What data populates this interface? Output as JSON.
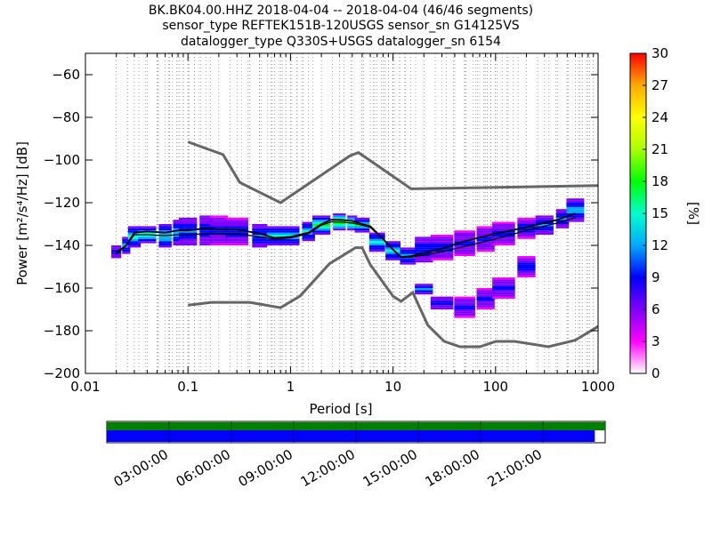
{
  "chart_data": [
    {
      "type": "heatmap",
      "subtype": "probabilistic power spectral density (PPSD)",
      "title_lines": [
        "BK.BK04.00.HHZ   2018-04-04 -- 2018-04-04  (46/46 segments)",
        "sensor_type REFTEK151B-120USGS sensor_sn G14125VS",
        "datalogger_type Q330S+USGS datalogger_sn 6154"
      ],
      "xlabel": "Period [s]",
      "ylabel": "Power [m²/s⁴/Hz] [dB]",
      "xscale": "log",
      "xlim": [
        0.01,
        1000
      ],
      "ylim": [
        -200,
        -50
      ],
      "x_ticks": [
        0.01,
        0.1,
        1,
        10,
        100,
        1000
      ],
      "x_tick_labels": [
        "0.01",
        "0.1",
        "1",
        "10",
        "100",
        "1000"
      ],
      "y_ticks": [
        -200,
        -180,
        -160,
        -140,
        -120,
        -100,
        -80,
        -60
      ],
      "y_tick_labels": [
        "−200",
        "−180",
        "−160",
        "−140",
        "−120",
        "−100",
        "−80",
        "−60"
      ],
      "grid": "dotted vertical lines at period bins, minor grid",
      "colorbar": {
        "label": "[%]",
        "range": [
          0,
          30
        ],
        "ticks": [
          0,
          3,
          6,
          9,
          12,
          15,
          18,
          21,
          24,
          27,
          30
        ],
        "tick_labels": [
          "0",
          "3",
          "6",
          "9",
          "12",
          "15",
          "18",
          "21",
          "24",
          "27",
          "30"
        ],
        "colormap": "pqlx (white-purple-blue-cyan-green-yellow-orange-red)"
      },
      "colors": {
        "noise_models": "#666666",
        "mode_line": "#000000",
        "mean_line": "#000000",
        "colormap_stops": [
          "#ffffff",
          "#ff00ff",
          "#7f00ff",
          "#0000ff",
          "#00aaff",
          "#00ffcc",
          "#00ff00",
          "#aaff00",
          "#ffff00",
          "#ffaa00",
          "#ff0000"
        ]
      },
      "new_high_noise_model": {
        "name": "NHNM",
        "x": [
          0.1,
          0.22,
          0.32,
          0.8,
          3.8,
          4.6,
          6.3,
          15,
          1000
        ],
        "y": [
          -91.5,
          -97.4,
          -110.5,
          -120,
          -98,
          -96.5,
          -101,
          -113.5,
          -112
        ]
      },
      "new_low_noise_model": {
        "name": "NLNM",
        "x": [
          0.1,
          0.17,
          0.4,
          0.8,
          1.24,
          2.4,
          4.3,
          5,
          6,
          10,
          12,
          15.6,
          21.9,
          31.6,
          45,
          70,
          101,
          154,
          328,
          600,
          1000
        ],
        "y": [
          -168,
          -166.7,
          -166.7,
          -169.2,
          -163.7,
          -148.6,
          -141.1,
          -141.1,
          -149,
          -163.8,
          -166.2,
          -162.1,
          -177.5,
          -185,
          -187.5,
          -187.5,
          -185,
          -185,
          -187.5,
          -184.4,
          -178
        ]
      },
      "mode_curve": {
        "x": [
          0.02,
          0.025,
          0.03,
          0.04,
          0.06,
          0.08,
          0.1,
          0.15,
          0.2,
          0.3,
          0.5,
          0.7,
          1,
          1.5,
          2,
          2.5,
          3,
          4,
          5,
          6,
          8,
          10,
          12,
          15,
          20,
          30,
          50,
          100,
          200,
          400,
          600
        ],
        "y": [
          -144,
          -140,
          -134,
          -133.5,
          -134,
          -133,
          -133,
          -132,
          -132.5,
          -132.5,
          -134.5,
          -136.5,
          -136,
          -134,
          -130,
          -128,
          -128,
          -128.5,
          -130,
          -131,
          -137,
          -142,
          -145.5,
          -145,
          -143.5,
          -141.5,
          -138,
          -134.5,
          -131.5,
          -128,
          -125
        ]
      },
      "mean_curve": {
        "x": [
          0.02,
          0.025,
          0.03,
          0.04,
          0.06,
          0.08,
          0.1,
          0.15,
          0.2,
          0.3,
          0.5,
          0.7,
          1,
          1.5,
          2,
          2.5,
          3,
          4,
          5,
          6,
          8,
          10,
          12,
          15,
          20,
          30,
          50,
          100,
          200,
          400,
          600
        ],
        "y": [
          -143,
          -140,
          -135,
          -135,
          -135.5,
          -135,
          -135,
          -134.5,
          -134.5,
          -134.5,
          -136,
          -137,
          -136.5,
          -134.5,
          -130.5,
          -129,
          -129,
          -129.5,
          -130.5,
          -131.5,
          -137,
          -142,
          -145.5,
          -145.5,
          -144.5,
          -143,
          -140.5,
          -137,
          -133,
          -129.5,
          -127
        ]
      },
      "density_bins": [
        {
          "x": 0.02,
          "y_ranges": [
            [
              -146,
              -140
            ]
          ],
          "pct": 8
        },
        {
          "x": 0.025,
          "y_ranges": [
            [
              -144,
              -136
            ]
          ],
          "pct": 10
        },
        {
          "x": 0.03,
          "y_ranges": [
            [
              -141,
              -131
            ]
          ],
          "pct": 12
        },
        {
          "x": 0.04,
          "y_ranges": [
            [
              -139,
              -131
            ]
          ],
          "pct": 14
        },
        {
          "x": 0.06,
          "y_ranges": [
            [
              -141,
              -130
            ]
          ],
          "pct": 12
        },
        {
          "x": 0.08,
          "y_ranges": [
            [
              -140,
              -128
            ]
          ],
          "pct": 10
        },
        {
          "x": 0.1,
          "y_ranges": [
            [
              -140,
              -127
            ]
          ],
          "pct": 9
        },
        {
          "x": 0.15,
          "y_ranges": [
            [
              -140,
              -126
            ]
          ],
          "pct": 8
        },
        {
          "x": 0.2,
          "y_ranges": [
            [
              -140,
              -126
            ]
          ],
          "pct": 7
        },
        {
          "x": 0.3,
          "y_ranges": [
            [
              -140,
              -127
            ]
          ],
          "pct": 7
        },
        {
          "x": 0.5,
          "y_ranges": [
            [
              -141,
              -130
            ]
          ],
          "pct": 9
        },
        {
          "x": 0.7,
          "y_ranges": [
            [
              -140,
              -131
            ]
          ],
          "pct": 11
        },
        {
          "x": 1,
          "y_ranges": [
            [
              -140,
              -131
            ]
          ],
          "pct": 12
        },
        {
          "x": 1.5,
          "y_ranges": [
            [
              -138,
              -129
            ]
          ],
          "pct": 12
        },
        {
          "x": 2,
          "y_ranges": [
            [
              -135,
              -126
            ]
          ],
          "pct": 14
        },
        {
          "x": 3,
          "y_ranges": [
            [
              -133,
              -125
            ]
          ],
          "pct": 16
        },
        {
          "x": 4,
          "y_ranges": [
            [
              -133,
              -126
            ]
          ],
          "pct": 15
        },
        {
          "x": 5,
          "y_ranges": [
            [
              -134,
              -127
            ]
          ],
          "pct": 14
        },
        {
          "x": 7,
          "y_ranges": [
            [
              -143,
              -134
            ]
          ],
          "pct": 12
        },
        {
          "x": 10,
          "y_ranges": [
            [
              -147,
              -138
            ]
          ],
          "pct": 11
        },
        {
          "x": 14,
          "y_ranges": [
            [
              -149,
              -141
            ]
          ],
          "pct": 10
        },
        {
          "x": 20,
          "y_ranges": [
            [
              -148,
              -136
            ],
            [
              -163,
              -158
            ]
          ],
          "pct": 8
        },
        {
          "x": 30,
          "y_ranges": [
            [
              -147,
              -135
            ],
            [
              -170,
              -164
            ]
          ],
          "pct": 7
        },
        {
          "x": 50,
          "y_ranges": [
            [
              -145,
              -133
            ],
            [
              -174,
              -164
            ]
          ],
          "pct": 6
        },
        {
          "x": 80,
          "y_ranges": [
            [
              -143,
              -131
            ],
            [
              -170,
              -160
            ]
          ],
          "pct": 6
        },
        {
          "x": 120,
          "y_ranges": [
            [
              -140,
              -129
            ],
            [
              -165,
              -155
            ]
          ],
          "pct": 6
        },
        {
          "x": 200,
          "y_ranges": [
            [
              -137,
              -127
            ],
            [
              -155,
              -145
            ]
          ],
          "pct": 7
        },
        {
          "x": 300,
          "y_ranges": [
            [
              -135,
              -126
            ]
          ],
          "pct": 8
        },
        {
          "x": 450,
          "y_ranges": [
            [
              -132,
              -123
            ]
          ],
          "pct": 9
        },
        {
          "x": 600,
          "y_ranges": [
            [
              -129,
              -118
            ]
          ],
          "pct": 10
        }
      ]
    },
    {
      "type": "bar",
      "subtype": "data coverage timeline",
      "x_tick_labels": [
        "03:00:00",
        "06:00:00",
        "09:00:00",
        "12:00:00",
        "15:00:00",
        "18:00:00",
        "21:00:00"
      ],
      "x_ticks_hours": [
        3,
        6,
        9,
        12,
        15,
        18,
        21
      ],
      "xlim_hours": [
        0,
        24
      ],
      "series": [
        {
          "values": [
            [
              0,
              24
            ]
          ],
          "color": "#007f00"
        },
        {
          "values": [
            [
              0,
              23.5
            ]
          ],
          "color": "#0000ff"
        }
      ]
    }
  ]
}
